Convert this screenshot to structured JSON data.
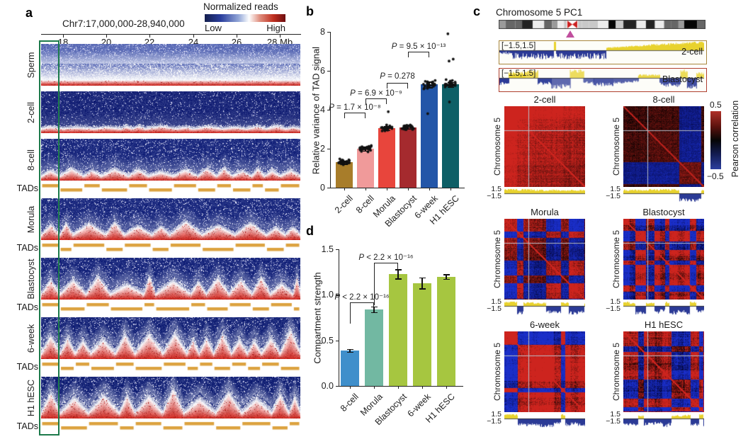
{
  "figure_labels": {
    "a": "a",
    "b": "b",
    "c": "c",
    "d": "d"
  },
  "panel_a": {
    "region_title": "Chr7:17,000,000-28,940,000",
    "axis_tick_labels": [
      "18",
      "20",
      "22",
      "24",
      "26",
      "28 Mb"
    ],
    "colorbar": {
      "title": "Normalized reads",
      "left_label": "Low",
      "right_label": "High"
    },
    "tads_label": "TADs",
    "rows": [
      {
        "label": "Sperm",
        "has_tads": false
      },
      {
        "label": "2-cell",
        "has_tads": false
      },
      {
        "label": "8-cell",
        "has_tads": true
      },
      {
        "label": "Morula",
        "has_tads": true
      },
      {
        "label": "Blastocyst",
        "has_tads": true
      },
      {
        "label": "6-week",
        "has_tads": true
      },
      {
        "label": "H1 hESC",
        "has_tads": true
      }
    ],
    "colors": {
      "tad_bar": "#dca23f",
      "highlight_box": "#1c7a4b"
    }
  },
  "panel_c": {
    "title": "Chromosome 5 PC1",
    "pc1_tracks": [
      {
        "scale_label": "[−1.5,1.5]",
        "name": "2-cell",
        "border_color": "#a8863c"
      },
      {
        "scale_label": "[−1.5,1.5]",
        "name": "Blastocyst",
        "border_color": "#b04030"
      }
    ],
    "matrix_titles": [
      "2-cell",
      "8-cell",
      "Morula",
      "Blastocyst",
      "6-week",
      "H1 hESC"
    ],
    "matrix_axis_label": "Chromosome 5",
    "mini_track_top_label": "1.5",
    "mini_track_bottom_label": "−1.5",
    "colorbar": {
      "title": "Pearson correlation",
      "top_label": "0.5",
      "bottom_label": "−0.5"
    }
  },
  "chart_data": [
    {
      "panel": "b",
      "type": "bar",
      "ylabel": "Relative variance of TAD signal",
      "categories": [
        "2-cell",
        "8-cell",
        "Morula",
        "Blastocyst",
        "6-week",
        "H1 hESC"
      ],
      "values": [
        1.3,
        2.0,
        3.05,
        3.1,
        5.3,
        5.3
      ],
      "errors": [
        0.08,
        0.1,
        0.1,
        0.08,
        0.15,
        0.12
      ],
      "bar_colors": [
        "#a87d2a",
        "#f09a9a",
        "#e8453c",
        "#a52a2e",
        "#2356a8",
        "#0e5f66"
      ],
      "ylim": [
        0,
        8
      ],
      "yticks": [
        "0",
        "2",
        "4",
        "6",
        "8"
      ],
      "point_overlay": true,
      "outliers": {
        "2": [
          3.9
        ],
        "4": [
          3.8
        ],
        "5": [
          7.9,
          6.6,
          6.5,
          4.4
        ]
      },
      "significance": [
        {
          "from": 0,
          "to": 1,
          "label": "P = 1.7 × 10⁻⁸",
          "y_value": 3.85
        },
        {
          "from": 1,
          "to": 2,
          "label": "P = 6.9 × 10⁻⁹",
          "y_value": 4.6
        },
        {
          "from": 2,
          "to": 3,
          "label": "P = 0.278",
          "y_value": 5.4
        },
        {
          "from": 3,
          "to": 4,
          "label": "P = 9.5 × 10⁻¹³",
          "y_value": 7.0
        }
      ]
    },
    {
      "panel": "d",
      "type": "bar",
      "ylabel": "Compartment strength",
      "categories": [
        "8-cell",
        "Morula",
        "Blastocyst",
        "6-week",
        "H1 hESC"
      ],
      "values": [
        0.39,
        0.84,
        1.23,
        1.13,
        1.2
      ],
      "errors": [
        0.015,
        0.03,
        0.05,
        0.06,
        0.025
      ],
      "bar_colors": [
        "#3f8fcb",
        "#72b8a2",
        "#a6c640",
        "#a6c640",
        "#a6c640"
      ],
      "ylim": [
        0,
        1.5
      ],
      "yticks": [
        "0.0",
        "0.5",
        "1.0",
        "1.5"
      ],
      "point_overlay": false,
      "significance": [
        {
          "from": 0,
          "to": 1,
          "label": "P < 2.2 × 10⁻¹⁶",
          "y_value": 0.92,
          "left_leg": 30,
          "right_leg": 8
        },
        {
          "from": 1,
          "to": 2,
          "label": "P < 2.2 × 10⁻¹⁶",
          "y_value": 1.35,
          "left_leg": 60,
          "right_leg": 10
        }
      ]
    }
  ]
}
